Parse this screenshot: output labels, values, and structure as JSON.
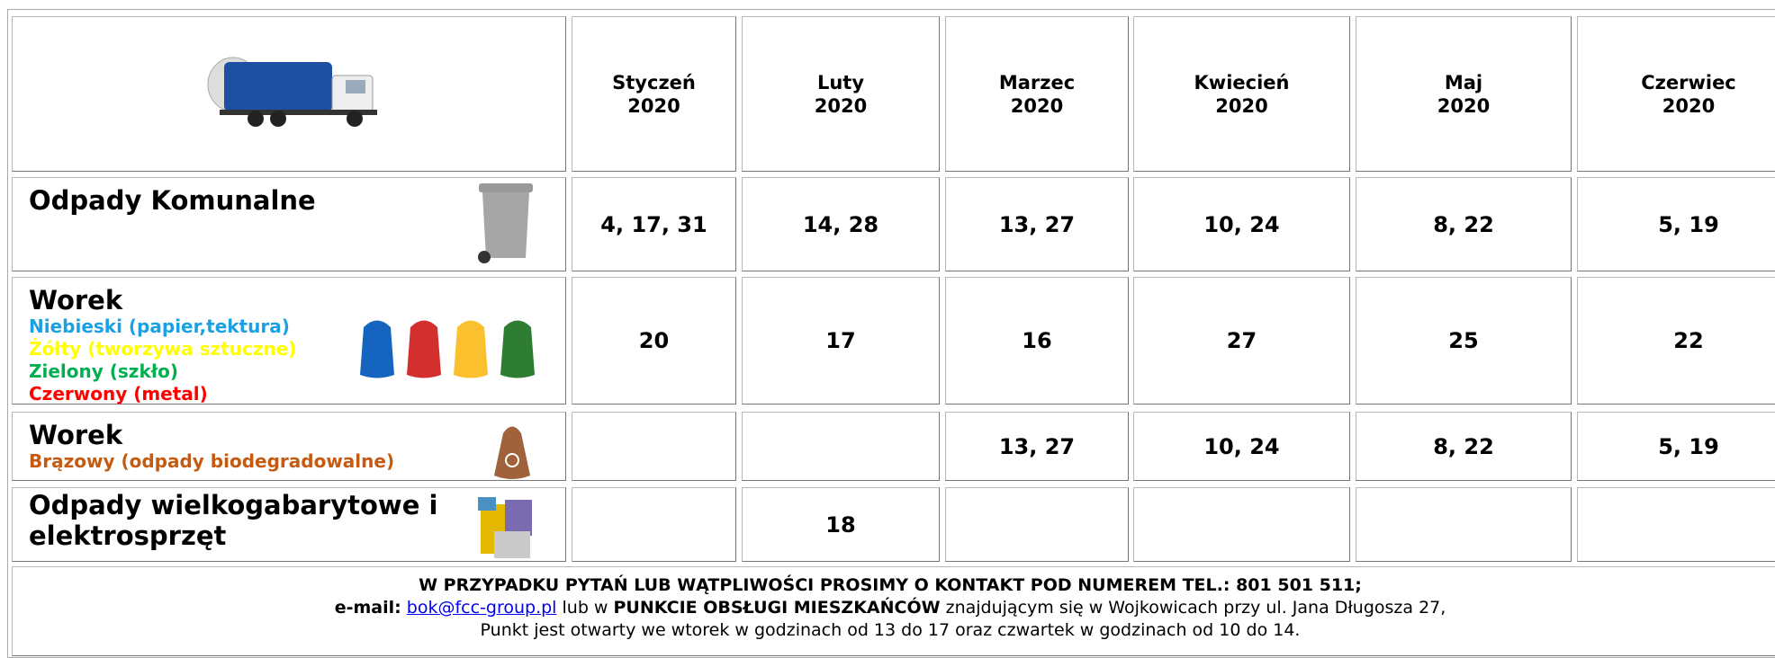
{
  "header": {
    "months": [
      {
        "name": "Styczeń",
        "year": "2020"
      },
      {
        "name": "Luty",
        "year": "2020"
      },
      {
        "name": "Marzec",
        "year": "2020"
      },
      {
        "name": "Kwiecień",
        "year": "2020"
      },
      {
        "name": "Maj",
        "year": "2020"
      },
      {
        "name": "Czerwiec",
        "year": "2020"
      }
    ]
  },
  "rows": [
    {
      "label": "Odpady Komunalne",
      "values": [
        "4, 17, 31",
        "14, 28",
        "13, 27",
        "10, 24",
        "8, 22",
        "5, 19"
      ]
    },
    {
      "label": "Worek",
      "sublabels": [
        {
          "text": "Niebieski (papier,tektura)",
          "color": "#1ba1e2"
        },
        {
          "text": "Żółty (tworzywa sztuczne)",
          "color": "#ffff00"
        },
        {
          "text": "Zielony (szkło)",
          "color": "#00b050"
        },
        {
          "text": "Czerwony (metal)",
          "color": "#ff0000"
        }
      ],
      "values": [
        "20",
        "17",
        "16",
        "27",
        "25",
        "22"
      ]
    },
    {
      "label": "Worek",
      "sublabels": [
        {
          "text": "Brązowy (odpady biodegradowalne)",
          "color": "#c55a11"
        }
      ],
      "values": [
        null,
        null,
        "13, 27",
        "10, 24",
        "8, 22",
        "5, 19"
      ]
    },
    {
      "label": "Odpady wielkogabarytowe i elektrosprzęt",
      "values": [
        null,
        "18",
        null,
        null,
        null,
        null
      ]
    }
  ],
  "footer": {
    "line1": "W PRZYPADKU PYTAŃ LUB WĄTPLIWOŚCI PROSIMY O KONTAKT  POD NUMEREM TEL.: 801 501 511;",
    "email_label": "e-mail:",
    "email": "bok@fcc-group.pl",
    "text2": " lub w ",
    "place": "PUNKCIE OBSŁUGI MIESZKAŃCÓW",
    "text3": " znajdującym się w Wojkowicach przy ul. Jana Długosza 27,",
    "line3": "Punkt jest otwarty we wtorek w godzinach od 13 do 17 oraz czwartek w godzinach od 10 do 14."
  }
}
